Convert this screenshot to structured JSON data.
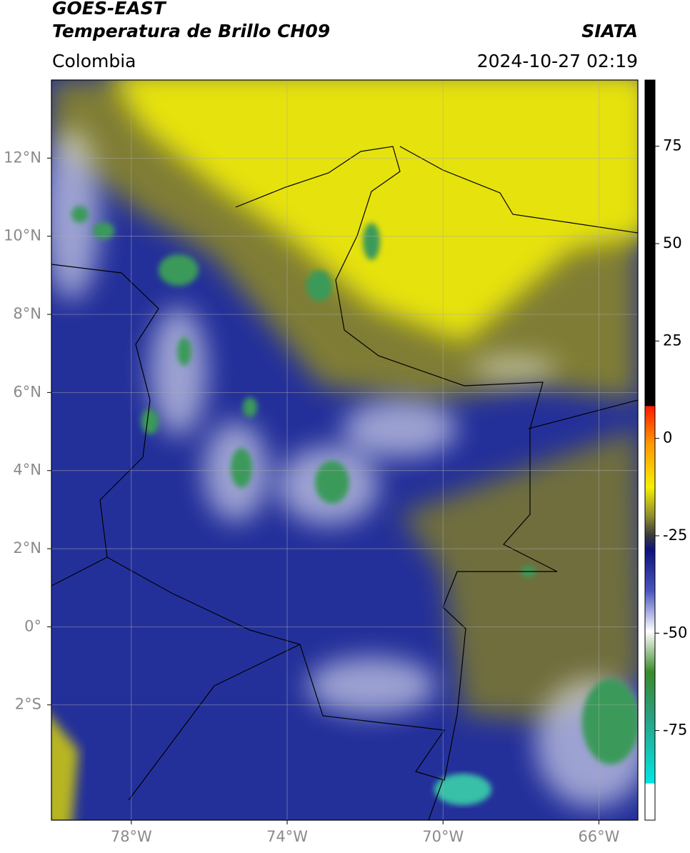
{
  "header": {
    "title": "GOES-EAST",
    "subtitle": "Temperatura de Brillo CH09",
    "source": "SIATA",
    "region": "Colombia",
    "datetime": "2024-10-27 02:19"
  },
  "map": {
    "xlim": [
      -80.05,
      -65.0
    ],
    "ylim": [
      -4.95,
      14.0
    ],
    "xticks": [
      {
        "value": -78,
        "label": "78°W"
      },
      {
        "value": -74,
        "label": "74°W"
      },
      {
        "value": -70,
        "label": "70°W"
      },
      {
        "value": -66,
        "label": "66°W"
      }
    ],
    "yticks": [
      {
        "value": 12,
        "label": "12°N"
      },
      {
        "value": 10,
        "label": "10°N"
      },
      {
        "value": 8,
        "label": "8°N"
      },
      {
        "value": 6,
        "label": "6°N"
      },
      {
        "value": 4,
        "label": "4°N"
      },
      {
        "value": 2,
        "label": "2°N"
      },
      {
        "value": 0,
        "label": "0°"
      },
      {
        "value": -2,
        "label": "2°S"
      }
    ],
    "grid": true
  },
  "colorbar": {
    "lim": [
      -98,
      92
    ],
    "ticks": [
      75,
      50,
      25,
      0,
      -25,
      -50,
      -75
    ]
  }
}
